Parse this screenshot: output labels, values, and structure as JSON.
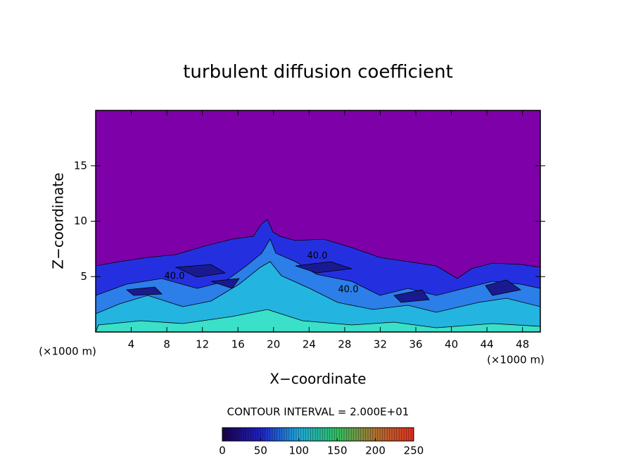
{
  "chart_data": {
    "type": "contour",
    "title": "turbulent diffusion coefficient",
    "x_label": "X−coordinate",
    "y_label": "Z−coordinate",
    "x_unit_label": "(×1000 m)",
    "y_unit_label": "(×1000 m)",
    "xlim": [
      0,
      50
    ],
    "ylim": [
      0,
      20
    ],
    "xticks": [
      4,
      8,
      12,
      16,
      20,
      24,
      28,
      32,
      36,
      40,
      44,
      48
    ],
    "yticks": [
      5,
      10,
      15
    ],
    "contour_interval_label": "CONTOUR INTERVAL = 2.000E+01",
    "contour_labels": [
      "40.0",
      "40.0",
      "40.0"
    ],
    "clim": [
      0,
      250
    ],
    "colorbar_ticks": [
      0,
      50,
      100,
      150,
      200,
      250
    ],
    "background_color": "#7d00a8"
  }
}
